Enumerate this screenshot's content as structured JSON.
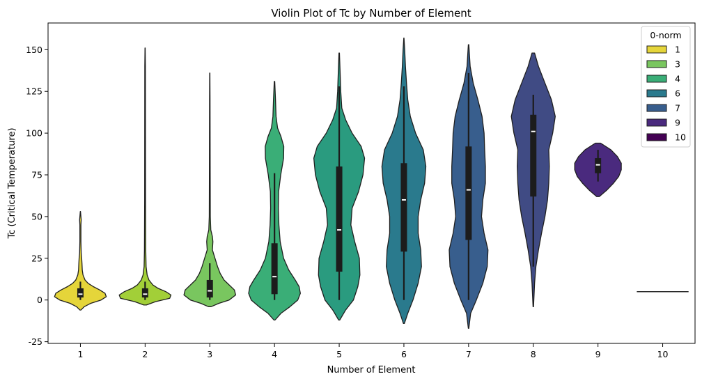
{
  "chart_data": {
    "type": "violin",
    "title": "Violin Plot of Tc by Number of Element",
    "xlabel": "Number of Element",
    "ylabel": "Tc (Critical Temperature)",
    "categories": [
      "1",
      "2",
      "3",
      "4",
      "5",
      "6",
      "7",
      "8",
      "9",
      "10"
    ],
    "ylim": [
      -26,
      166
    ],
    "yticks": [
      -25,
      0,
      25,
      50,
      75,
      100,
      125,
      150
    ],
    "grid": false,
    "legend": {
      "title": "0-norm",
      "position": "top-right",
      "entries": [
        {
          "label": "1",
          "color": "#e5d53a"
        },
        {
          "label": "3",
          "color": "#79c65f"
        },
        {
          "label": "4",
          "color": "#3aae77"
        },
        {
          "label": "6",
          "color": "#2a7a8d"
        },
        {
          "label": "7",
          "color": "#385e8d"
        },
        {
          "label": "9",
          "color": "#4a2a7e"
        },
        {
          "label": "10",
          "color": "#440154"
        }
      ]
    },
    "series": [
      {
        "category": "1",
        "color": "#e5d53a",
        "min": 0,
        "q1": 1.5,
        "median": 3.5,
        "q3": 7,
        "max": 11,
        "extent": [
          -6,
          53
        ],
        "profile": [
          [
            -6,
            0.02
          ],
          [
            -4,
            0.15
          ],
          [
            -2,
            0.4
          ],
          [
            0,
            0.8
          ],
          [
            2,
            1.0
          ],
          [
            4,
            0.95
          ],
          [
            6,
            0.75
          ],
          [
            8,
            0.5
          ],
          [
            10,
            0.3
          ],
          [
            12,
            0.18
          ],
          [
            15,
            0.1
          ],
          [
            18,
            0.07
          ],
          [
            22,
            0.06
          ],
          [
            25,
            0.05
          ],
          [
            28,
            0.03
          ],
          [
            35,
            0.02
          ],
          [
            45,
            0.02
          ],
          [
            48,
            0.03
          ],
          [
            50,
            0.02
          ],
          [
            53,
            0.005
          ]
        ]
      },
      {
        "category": "2",
        "color": "#a2cf38",
        "min": 0,
        "q1": 1.5,
        "median": 3.5,
        "q3": 7,
        "max": 11,
        "extent": [
          -3,
          151
        ],
        "profile": [
          [
            -3,
            0.05
          ],
          [
            -1,
            0.4
          ],
          [
            1,
            0.95
          ],
          [
            3,
            1.0
          ],
          [
            5,
            0.8
          ],
          [
            7,
            0.5
          ],
          [
            9,
            0.3
          ],
          [
            12,
            0.15
          ],
          [
            15,
            0.08
          ],
          [
            20,
            0.04
          ],
          [
            30,
            0.025
          ],
          [
            60,
            0.018
          ],
          [
            100,
            0.016
          ],
          [
            140,
            0.012
          ],
          [
            151,
            0.005
          ]
        ]
      },
      {
        "category": "3",
        "color": "#79c65f",
        "min": 0,
        "q1": 1.5,
        "median": 5.5,
        "q3": 12,
        "max": 22,
        "extent": [
          -4,
          136
        ],
        "profile": [
          [
            -4,
            0.05
          ],
          [
            -2,
            0.35
          ],
          [
            0,
            0.75
          ],
          [
            3,
            1.0
          ],
          [
            6,
            0.95
          ],
          [
            9,
            0.75
          ],
          [
            12,
            0.55
          ],
          [
            16,
            0.4
          ],
          [
            20,
            0.3
          ],
          [
            25,
            0.2
          ],
          [
            30,
            0.1
          ],
          [
            35,
            0.12
          ],
          [
            38,
            0.1
          ],
          [
            42,
            0.04
          ],
          [
            50,
            0.02
          ],
          [
            80,
            0.015
          ],
          [
            120,
            0.01
          ],
          [
            136,
            0.005
          ]
        ]
      },
      {
        "category": "4",
        "color": "#3aae77",
        "min": 0,
        "q1": 3.5,
        "median": 14,
        "q3": 34,
        "max": 76,
        "extent": [
          -12,
          131
        ],
        "profile": [
          [
            -12,
            0.02
          ],
          [
            -8,
            0.25
          ],
          [
            -4,
            0.6
          ],
          [
            0,
            0.9
          ],
          [
            4,
            1.0
          ],
          [
            8,
            0.95
          ],
          [
            12,
            0.8
          ],
          [
            18,
            0.55
          ],
          [
            25,
            0.35
          ],
          [
            35,
            0.22
          ],
          [
            45,
            0.17
          ],
          [
            55,
            0.15
          ],
          [
            65,
            0.16
          ],
          [
            75,
            0.24
          ],
          [
            85,
            0.35
          ],
          [
            92,
            0.36
          ],
          [
            98,
            0.25
          ],
          [
            103,
            0.12
          ],
          [
            110,
            0.06
          ],
          [
            120,
            0.04
          ],
          [
            131,
            0.01
          ]
        ]
      },
      {
        "category": "5",
        "color": "#2a9b7f",
        "min": 0,
        "q1": 17,
        "median": 42,
        "q3": 80,
        "max": 128,
        "extent": [
          -12,
          148
        ],
        "profile": [
          [
            -12,
            0.02
          ],
          [
            -6,
            0.25
          ],
          [
            0,
            0.55
          ],
          [
            8,
            0.72
          ],
          [
            15,
            0.8
          ],
          [
            25,
            0.78
          ],
          [
            35,
            0.6
          ],
          [
            45,
            0.45
          ],
          [
            55,
            0.5
          ],
          [
            65,
            0.75
          ],
          [
            75,
            0.92
          ],
          [
            85,
            0.98
          ],
          [
            92,
            0.85
          ],
          [
            100,
            0.5
          ],
          [
            108,
            0.25
          ],
          [
            115,
            0.1
          ],
          [
            125,
            0.06
          ],
          [
            135,
            0.04
          ],
          [
            148,
            0.01
          ]
        ]
      },
      {
        "category": "6",
        "color": "#2a7a8d",
        "min": 0,
        "q1": 29,
        "median": 60,
        "q3": 82,
        "max": 128,
        "extent": [
          -14,
          157
        ],
        "profile": [
          [
            -14,
            0.02
          ],
          [
            -8,
            0.15
          ],
          [
            0,
            0.35
          ],
          [
            10,
            0.55
          ],
          [
            20,
            0.68
          ],
          [
            30,
            0.65
          ],
          [
            40,
            0.55
          ],
          [
            50,
            0.55
          ],
          [
            60,
            0.65
          ],
          [
            70,
            0.8
          ],
          [
            80,
            0.85
          ],
          [
            90,
            0.75
          ],
          [
            100,
            0.45
          ],
          [
            110,
            0.25
          ],
          [
            120,
            0.15
          ],
          [
            130,
            0.1
          ],
          [
            140,
            0.06
          ],
          [
            150,
            0.03
          ],
          [
            157,
            0.005
          ]
        ]
      },
      {
        "category": "7",
        "color": "#385e8d",
        "min": 0,
        "q1": 36,
        "median": 66,
        "q3": 92,
        "max": 136,
        "extent": [
          -17,
          153
        ],
        "profile": [
          [
            -17,
            0.01
          ],
          [
            -8,
            0.08
          ],
          [
            0,
            0.3
          ],
          [
            10,
            0.55
          ],
          [
            20,
            0.72
          ],
          [
            30,
            0.75
          ],
          [
            40,
            0.6
          ],
          [
            50,
            0.5
          ],
          [
            60,
            0.55
          ],
          [
            70,
            0.65
          ],
          [
            80,
            0.65
          ],
          [
            90,
            0.62
          ],
          [
            100,
            0.6
          ],
          [
            110,
            0.52
          ],
          [
            120,
            0.36
          ],
          [
            130,
            0.18
          ],
          [
            140,
            0.06
          ],
          [
            153,
            0.01
          ]
        ]
      },
      {
        "category": "8",
        "color": "#404b84",
        "min": 20,
        "q1": 62,
        "median": 101,
        "q3": 111,
        "max": 123,
        "extent": [
          -4,
          148
        ],
        "profile": [
          [
            -4,
            0.01
          ],
          [
            10,
            0.05
          ],
          [
            20,
            0.1
          ],
          [
            30,
            0.2
          ],
          [
            40,
            0.32
          ],
          [
            50,
            0.45
          ],
          [
            60,
            0.55
          ],
          [
            70,
            0.6
          ],
          [
            80,
            0.62
          ],
          [
            90,
            0.6
          ],
          [
            100,
            0.75
          ],
          [
            110,
            0.85
          ],
          [
            120,
            0.7
          ],
          [
            130,
            0.45
          ],
          [
            140,
            0.2
          ],
          [
            148,
            0.05
          ]
        ]
      },
      {
        "category": "9",
        "color": "#4a2a7e",
        "min": 71,
        "q1": 76,
        "median": 81,
        "q3": 85,
        "max": 90,
        "extent": [
          62,
          94
        ],
        "profile": [
          [
            62,
            0.05
          ],
          [
            66,
            0.35
          ],
          [
            70,
            0.6
          ],
          [
            74,
            0.8
          ],
          [
            78,
            0.9
          ],
          [
            82,
            0.9
          ],
          [
            86,
            0.75
          ],
          [
            90,
            0.5
          ],
          [
            94,
            0.1
          ]
        ]
      },
      {
        "category": "10",
        "color": "#440154",
        "single_value": 5
      }
    ]
  }
}
